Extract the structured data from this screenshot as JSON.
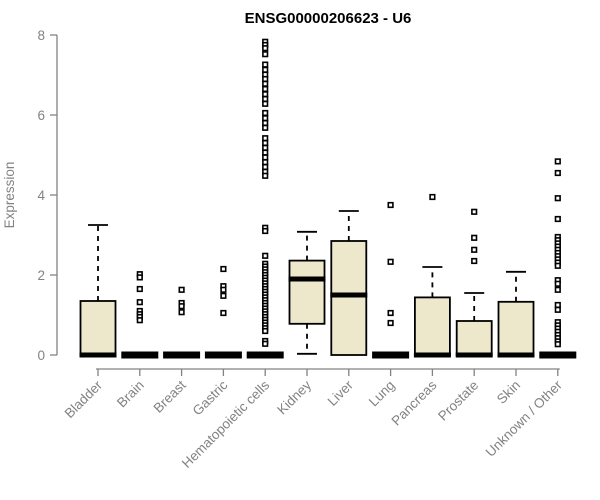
{
  "chart_data": {
    "type": "boxplot",
    "title": "ENSG00000206623 - U6",
    "ylabel": "Expression",
    "xlabel": "",
    "ylim": [
      0,
      8
    ],
    "yticks": [
      0,
      2,
      4,
      6,
      8
    ],
    "grid": false,
    "legend": false,
    "colors": {
      "box_fill": "#EDE8CC",
      "box_stroke": "#000000",
      "median": "#000000",
      "axis": "#828282",
      "tick_label": "#828282",
      "title": "#000000"
    },
    "categories": [
      "Bladder",
      "Brain",
      "Breast",
      "Gastric",
      "Hematopoietic cells",
      "Kidney",
      "Liver",
      "Lung",
      "Pancreas",
      "Prostate",
      "Skin",
      "Unknown / Other"
    ],
    "series": [
      {
        "name": "Bladder",
        "stats": {
          "low": 0,
          "q1": 0,
          "median": 0,
          "q3": 1.35,
          "high": 3.25
        },
        "outliers": []
      },
      {
        "name": "Brain",
        "stats": {
          "low": 0,
          "q1": 0,
          "median": 0,
          "q3": 0,
          "high": 0
        },
        "outliers": [
          2.02,
          1.94,
          1.65,
          1.32,
          1.1,
          1.02,
          0.95,
          0.87
        ]
      },
      {
        "name": "Breast",
        "stats": {
          "low": 0,
          "q1": 0,
          "median": 0,
          "q3": 0,
          "high": 0
        },
        "outliers": [
          1.63,
          1.3,
          1.22,
          1.07
        ]
      },
      {
        "name": "Gastric",
        "stats": {
          "low": 0,
          "q1": 0,
          "median": 0,
          "q3": 0,
          "high": 0
        },
        "outliers": [
          2.15,
          1.72,
          1.63,
          1.48,
          1.05
        ]
      },
      {
        "name": "Hematopoietic cells",
        "stats": {
          "low": 0,
          "q1": 0,
          "median": 0,
          "q3": 0,
          "high": 0
        },
        "outliers": [
          7.83,
          7.75,
          7.67,
          7.52,
          7.26,
          7.13,
          7.01,
          6.9,
          6.78,
          6.65,
          6.52,
          6.4,
          6.28,
          6.05,
          5.92,
          5.8,
          5.68,
          5.42,
          5.3,
          5.18,
          5.06,
          4.94,
          4.82,
          4.7,
          4.58,
          4.48,
          3.18,
          3.1,
          2.48,
          2.28,
          2.21,
          2.14,
          2.07,
          2.0,
          1.93,
          1.86,
          1.79,
          1.72,
          1.65,
          1.58,
          1.51,
          1.44,
          1.37,
          1.3,
          1.23,
          1.16,
          1.09,
          1.02,
          0.95,
          0.88,
          0.81,
          0.74,
          0.67,
          0.6,
          0.35,
          0.28
        ]
      },
      {
        "name": "Kidney",
        "stats": {
          "low": 0.03,
          "q1": 0.78,
          "median": 1.9,
          "q3": 2.36,
          "high": 3.08
        },
        "outliers": []
      },
      {
        "name": "Liver",
        "stats": {
          "low": 0,
          "q1": 0,
          "median": 1.5,
          "q3": 2.85,
          "high": 3.6
        },
        "outliers": []
      },
      {
        "name": "Lung",
        "stats": {
          "low": 0,
          "q1": 0,
          "median": 0,
          "q3": 0,
          "high": 0
        },
        "outliers": [
          3.75,
          2.33,
          1.05,
          0.8
        ]
      },
      {
        "name": "Pancreas",
        "stats": {
          "low": 0,
          "q1": 0,
          "median": 0,
          "q3": 1.44,
          "high": 2.2
        },
        "outliers": [
          3.95
        ]
      },
      {
        "name": "Prostate",
        "stats": {
          "low": 0,
          "q1": 0,
          "median": 0,
          "q3": 0.85,
          "high": 1.55
        },
        "outliers": [
          3.58,
          2.93,
          2.63,
          2.35
        ]
      },
      {
        "name": "Skin",
        "stats": {
          "low": 0,
          "q1": 0,
          "median": 0,
          "q3": 1.33,
          "high": 2.08
        },
        "outliers": []
      },
      {
        "name": "Unknown / Other",
        "stats": {
          "low": 0,
          "q1": 0,
          "median": 0,
          "q3": 0,
          "high": 0
        },
        "outliers": [
          4.84,
          4.55,
          3.92,
          3.4,
          2.95,
          2.87,
          2.79,
          2.71,
          2.63,
          2.55,
          2.47,
          2.39,
          2.31,
          2.23,
          1.87,
          1.78,
          1.63,
          1.25,
          1.13,
          0.82,
          0.74,
          0.66,
          0.58,
          0.5,
          0.42,
          0.34,
          0.27
        ]
      }
    ]
  }
}
